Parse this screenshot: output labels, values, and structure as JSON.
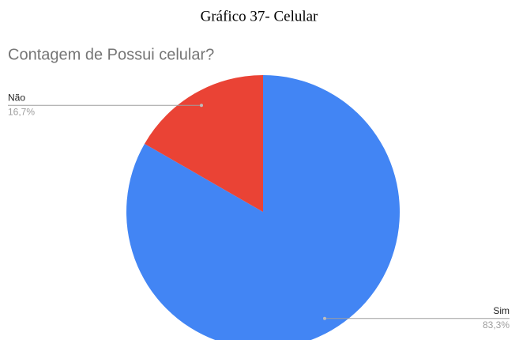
{
  "caption": "Gráfico 37- Celular",
  "chart_data": {
    "type": "pie",
    "title": "Contagem de Possui celular?",
    "categories": [
      "Sim",
      "Não"
    ],
    "values": [
      83.3,
      16.7
    ],
    "value_labels": [
      "83,3%",
      "16,7%"
    ],
    "colors": [
      "#4285f4",
      "#ea4335"
    ]
  }
}
